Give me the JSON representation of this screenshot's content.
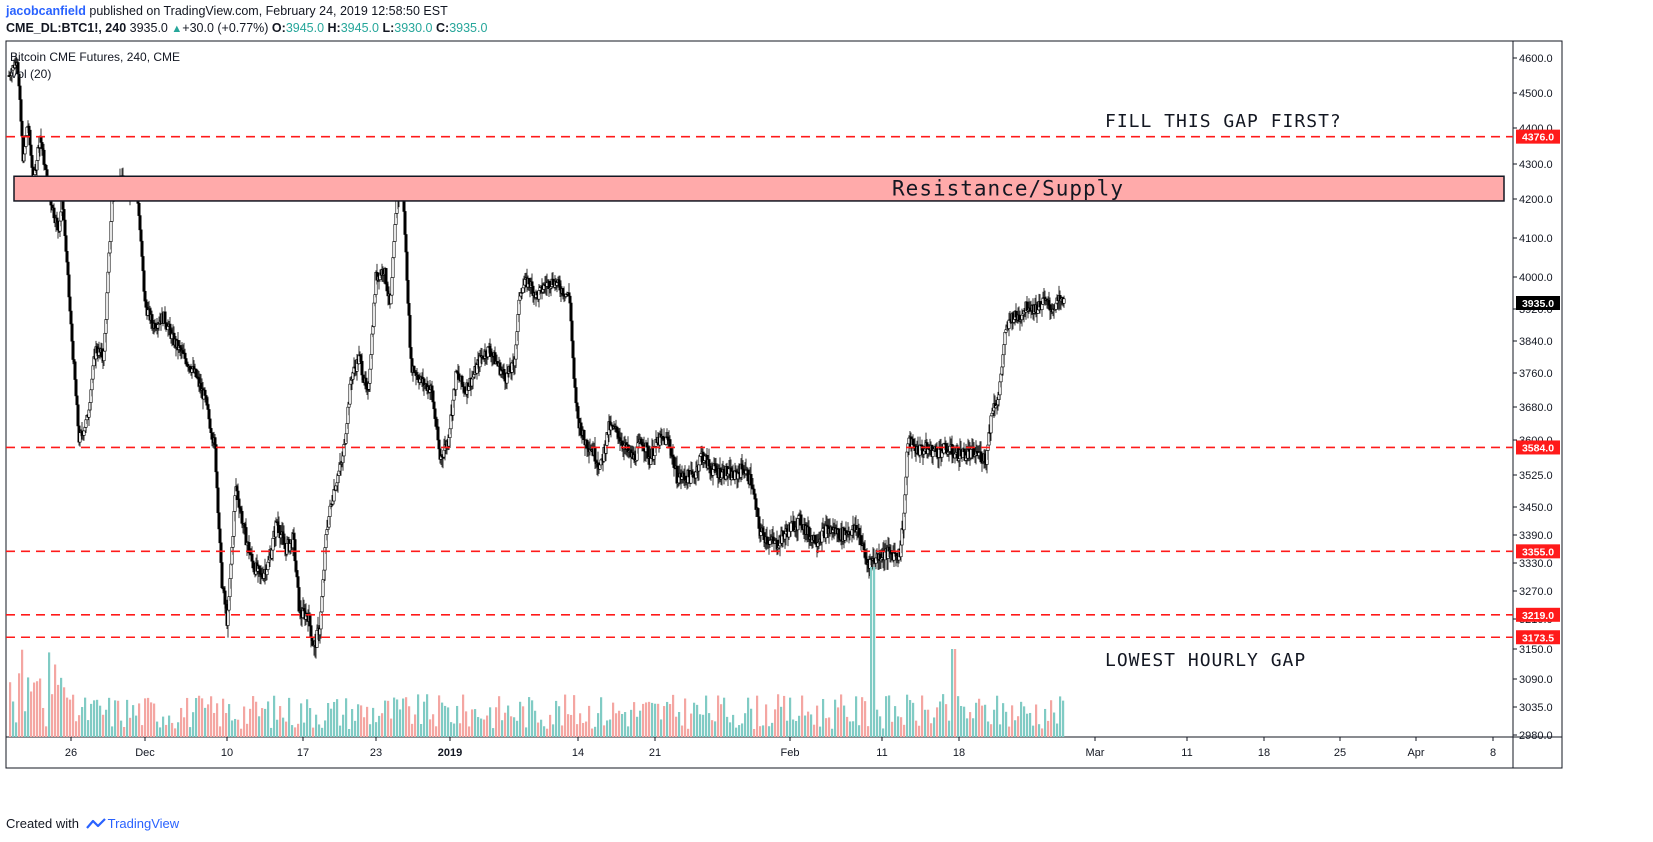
{
  "header": {
    "author": "jacobcanfield",
    "published": "published on TradingView.com, February 24, 2019 12:58:50 EST",
    "symbol": "CME_DL:BTC1!, 240",
    "last": "3935.0",
    "change": "+30.0 (+0.77%)",
    "o_label": "O:",
    "o_value": "3945.0",
    "h_label": "H:",
    "h_value": "3945.0",
    "l_label": "L:",
    "l_value": "3930.0",
    "c_label": "C:",
    "c_value": "3935.0"
  },
  "footer": {
    "created_with": "Created with",
    "brand": "TradingView"
  },
  "colors": {
    "up": "#ffffff",
    "down": "#000000",
    "vol_up": "#80cbc4",
    "vol_down": "#f4a6a2",
    "level": "#ff1a1a",
    "zone": "#ffaaaa"
  },
  "chart_data": {
    "type": "candlestick",
    "title": "Bitcoin CME Futures, 240, CME",
    "volume_label": "Vol (20)",
    "y_ticks": [
      "4600.0",
      "4500.0",
      "4400.0",
      "4300.0",
      "4200.0",
      "4100.0",
      "4000.0",
      "3920.0",
      "3840.0",
      "3760.0",
      "3680.0",
      "3600.0",
      "3525.0",
      "3450.0",
      "3390.0",
      "3330.0",
      "3270.0",
      "3210.0",
      "3150.0",
      "3090.0",
      "3035.0",
      "2980.0"
    ],
    "x_ticks": [
      "26",
      "Dec",
      "10",
      "17",
      "23",
      "2019",
      "14",
      "21",
      "Feb",
      "11",
      "18",
      "Mar",
      "11",
      "18",
      "25",
      "Apr",
      "8"
    ],
    "last_price": {
      "value": 3935.0,
      "label": "3935.0"
    },
    "levels": [
      {
        "value": 4376.0,
        "label": "4376.0"
      },
      {
        "value": 3584.0,
        "label": "3584.0"
      },
      {
        "value": 3355.0,
        "label": "3355.0"
      },
      {
        "value": 3219.0,
        "label": "3219.0"
      },
      {
        "value": 3173.5,
        "label": "3173.5"
      }
    ],
    "zone": {
      "from": 4195,
      "to": 4265,
      "label": "Resistance/Supply"
    },
    "annotations": [
      "FILL THIS GAP FIRST?",
      "LOWEST HOURLY GAP"
    ],
    "path": [
      [
        0,
        4550
      ],
      [
        8,
        4600
      ],
      [
        14,
        4300
      ],
      [
        18,
        4420
      ],
      [
        24,
        4250
      ],
      [
        30,
        4380
      ],
      [
        40,
        4200
      ],
      [
        48,
        4120
      ],
      [
        52,
        4200
      ],
      [
        60,
        3880
      ],
      [
        68,
        3600
      ],
      [
        76,
        3650
      ],
      [
        84,
        3820
      ],
      [
        92,
        3800
      ],
      [
        100,
        4200
      ],
      [
        108,
        4260
      ],
      [
        116,
        4220
      ],
      [
        124,
        4240
      ],
      [
        132,
        3930
      ],
      [
        140,
        3880
      ],
      [
        150,
        3900
      ],
      [
        160,
        3840
      ],
      [
        170,
        3800
      ],
      [
        180,
        3760
      ],
      [
        190,
        3700
      ],
      [
        200,
        3580
      ],
      [
        206,
        3300
      ],
      [
        212,
        3200
      ],
      [
        220,
        3500
      ],
      [
        228,
        3400
      ],
      [
        236,
        3330
      ],
      [
        244,
        3300
      ],
      [
        252,
        3330
      ],
      [
        260,
        3420
      ],
      [
        268,
        3360
      ],
      [
        276,
        3380
      ],
      [
        282,
        3220
      ],
      [
        290,
        3220
      ],
      [
        296,
        3150
      ],
      [
        302,
        3200
      ],
      [
        308,
        3400
      ],
      [
        316,
        3500
      ],
      [
        324,
        3560
      ],
      [
        332,
        3750
      ],
      [
        340,
        3800
      ],
      [
        348,
        3700
      ],
      [
        356,
        4000
      ],
      [
        364,
        4020
      ],
      [
        370,
        3920
      ],
      [
        376,
        4200
      ],
      [
        382,
        4220
      ],
      [
        384,
        4120
      ],
      [
        390,
        3780
      ],
      [
        400,
        3740
      ],
      [
        410,
        3720
      ],
      [
        418,
        3560
      ],
      [
        426,
        3600
      ],
      [
        434,
        3760
      ],
      [
        442,
        3720
      ],
      [
        450,
        3750
      ],
      [
        458,
        3800
      ],
      [
        466,
        3820
      ],
      [
        474,
        3780
      ],
      [
        482,
        3750
      ],
      [
        490,
        3780
      ],
      [
        496,
        3970
      ],
      [
        504,
        3990
      ],
      [
        512,
        3950
      ],
      [
        520,
        3980
      ],
      [
        528,
        3990
      ],
      [
        536,
        3970
      ],
      [
        544,
        3950
      ],
      [
        548,
        3740
      ],
      [
        552,
        3650
      ],
      [
        558,
        3600
      ],
      [
        566,
        3580
      ],
      [
        574,
        3540
      ],
      [
        582,
        3630
      ],
      [
        590,
        3620
      ],
      [
        598,
        3580
      ],
      [
        606,
        3560
      ],
      [
        614,
        3600
      ],
      [
        622,
        3560
      ],
      [
        630,
        3600
      ],
      [
        640,
        3600
      ],
      [
        648,
        3520
      ],
      [
        656,
        3520
      ],
      [
        664,
        3520
      ],
      [
        672,
        3570
      ],
      [
        680,
        3540
      ],
      [
        688,
        3530
      ],
      [
        696,
        3530
      ],
      [
        704,
        3520
      ],
      [
        712,
        3540
      ],
      [
        720,
        3510
      ],
      [
        728,
        3400
      ],
      [
        736,
        3380
      ],
      [
        744,
        3370
      ],
      [
        752,
        3390
      ],
      [
        760,
        3410
      ],
      [
        768,
        3420
      ],
      [
        776,
        3390
      ],
      [
        784,
        3380
      ],
      [
        792,
        3400
      ],
      [
        800,
        3400
      ],
      [
        808,
        3390
      ],
      [
        816,
        3400
      ],
      [
        824,
        3400
      ],
      [
        832,
        3330
      ],
      [
        840,
        3340
      ],
      [
        848,
        3350
      ],
      [
        856,
        3350
      ],
      [
        864,
        3350
      ],
      [
        868,
        3430
      ],
      [
        872,
        3600
      ],
      [
        880,
        3580
      ],
      [
        890,
        3580
      ],
      [
        900,
        3575
      ],
      [
        910,
        3580
      ],
      [
        920,
        3570
      ],
      [
        930,
        3570
      ],
      [
        940,
        3570
      ],
      [
        948,
        3560
      ],
      [
        954,
        3680
      ],
      [
        960,
        3700
      ],
      [
        966,
        3850
      ],
      [
        972,
        3900
      ],
      [
        980,
        3900
      ],
      [
        988,
        3930
      ],
      [
        996,
        3920
      ],
      [
        1004,
        3940
      ],
      [
        1012,
        3920
      ],
      [
        1018,
        3940
      ],
      [
        1024,
        3935
      ]
    ]
  }
}
